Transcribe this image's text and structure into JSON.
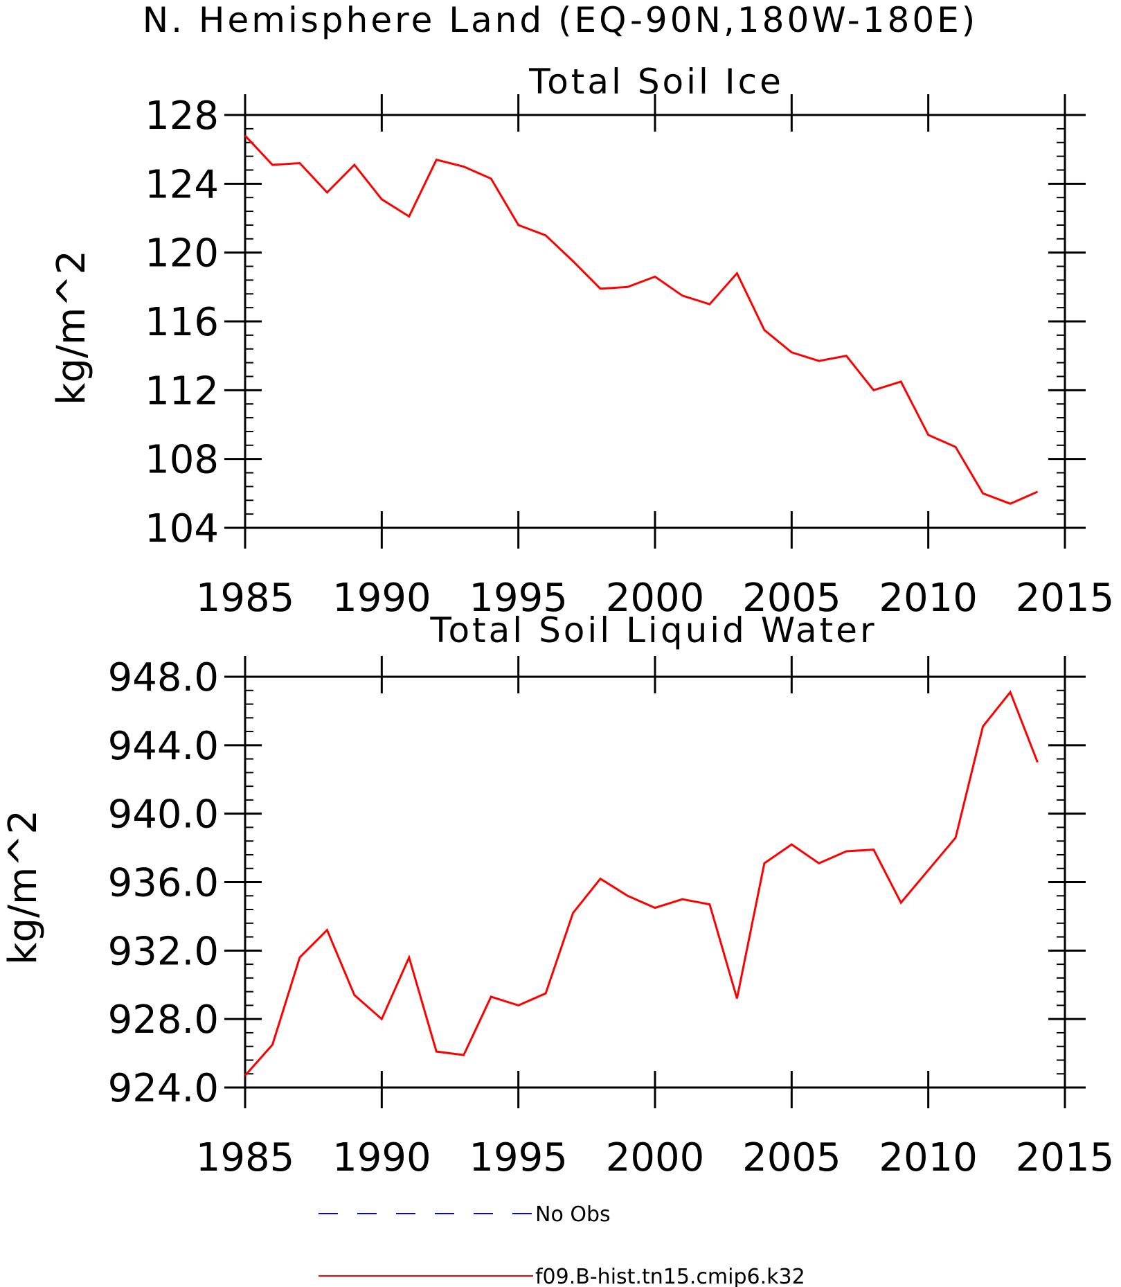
{
  "figure_title": "N. Hemisphere Land (EQ-90N,180W-180E)",
  "chart_data": [
    {
      "type": "line",
      "title": "Total Soil Ice",
      "xlabel": "",
      "ylabel": "kg/m^2",
      "xlim": [
        1985,
        2015
      ],
      "ylim": [
        104,
        128
      ],
      "xticks": [
        1985,
        1990,
        1995,
        2000,
        2005,
        2010,
        2015
      ],
      "yticks": [
        104,
        108,
        112,
        116,
        120,
        124,
        128
      ],
      "ytick_labels": [
        "104",
        "108",
        "112",
        "116",
        "120",
        "124",
        "128"
      ],
      "x": [
        1985,
        1986,
        1987,
        1988,
        1989,
        1990,
        1991,
        1992,
        1993,
        1994,
        1995,
        1996,
        1997,
        1998,
        1999,
        2000,
        2001,
        2002,
        2003,
        2004,
        2005,
        2006,
        2007,
        2008,
        2009,
        2010,
        2011,
        2012,
        2013,
        2014
      ],
      "series": [
        {
          "name": "f09.B-hist.tn15.cmip6.k32",
          "color": "#ff0000",
          "values": [
            126.8,
            125.1,
            125.2,
            123.5,
            125.1,
            123.1,
            122.1,
            125.4,
            125.0,
            124.3,
            121.6,
            121.0,
            119.5,
            117.9,
            118.0,
            118.6,
            117.5,
            117.0,
            118.8,
            115.5,
            114.2,
            113.7,
            114.0,
            112.0,
            112.5,
            109.4,
            108.7,
            106.0,
            105.4,
            106.1
          ]
        }
      ]
    },
    {
      "type": "line",
      "title": "Total Soil Liquid Water",
      "xlabel": "",
      "ylabel": "kg/m^2",
      "xlim": [
        1985,
        2015
      ],
      "ylim": [
        924,
        948
      ],
      "xticks": [
        1985,
        1990,
        1995,
        2000,
        2005,
        2010,
        2015
      ],
      "yticks": [
        924,
        928,
        932,
        936,
        940,
        944,
        948
      ],
      "ytick_labels": [
        "924.0",
        "928.0",
        "932.0",
        "936.0",
        "940.0",
        "944.0",
        "948.0"
      ],
      "x": [
        1985,
        1986,
        1987,
        1988,
        1989,
        1990,
        1991,
        1992,
        1993,
        1994,
        1995,
        1996,
        1997,
        1998,
        1999,
        2000,
        2001,
        2002,
        2003,
        2004,
        2005,
        2006,
        2007,
        2008,
        2009,
        2010,
        2011,
        2012,
        2013,
        2014
      ],
      "series": [
        {
          "name": "f09.B-hist.tn15.cmip6.k32",
          "color": "#ff0000",
          "values": [
            924.7,
            926.5,
            931.6,
            933.2,
            929.4,
            928.0,
            931.6,
            926.1,
            925.9,
            929.3,
            928.8,
            929.5,
            934.2,
            936.2,
            935.2,
            934.5,
            935.0,
            934.7,
            929.2,
            937.1,
            938.2,
            937.1,
            937.8,
            937.9,
            934.8,
            936.7,
            938.6,
            945.1,
            947.1,
            943.0
          ]
        }
      ]
    }
  ],
  "legend": {
    "position": "bottom-center",
    "items": [
      {
        "label": "No Obs",
        "color": "#0000ff",
        "style": "dashed"
      },
      {
        "label": "f09.B-hist.tn15.cmip6.k32",
        "color": "#ff0000",
        "style": "solid"
      }
    ]
  }
}
